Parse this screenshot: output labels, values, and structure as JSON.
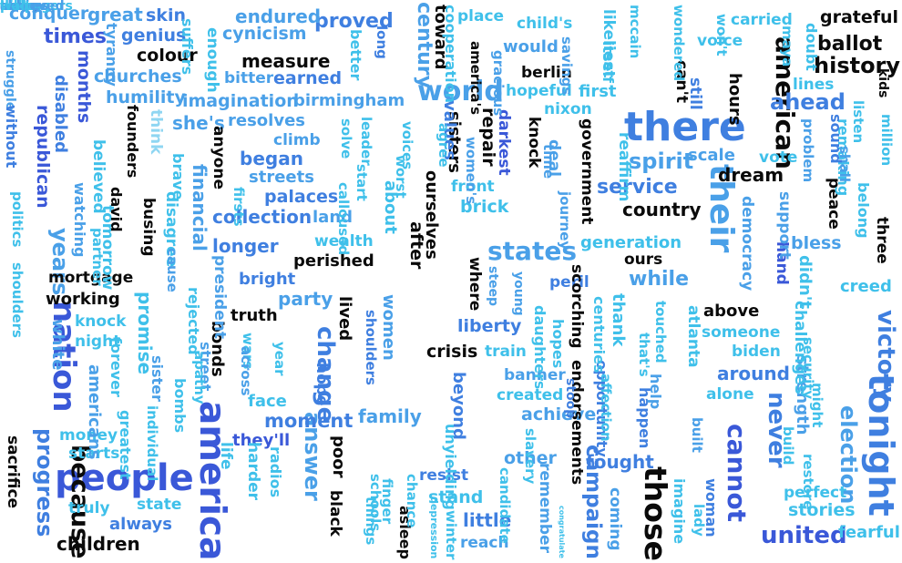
{
  "palette": {
    "black": "#0a0a0a",
    "royal": "#3a58d8",
    "blue": "#3f7fe0",
    "sky": "#4aa0e8",
    "cyan": "#3fc0ea",
    "pale": "#8fd6f2"
  },
  "words": [
    {
      "text": "america",
      "color": "royal"
    },
    {
      "text": "people",
      "color": "royal"
    },
    {
      "text": "tonight",
      "color": "blue"
    },
    {
      "text": "there",
      "color": "blue"
    },
    {
      "text": "their",
      "color": "sky"
    },
    {
      "text": "those",
      "color": "black"
    },
    {
      "text": "nation",
      "color": "royal"
    },
    {
      "text": "because",
      "color": "black"
    },
    {
      "text": "world",
      "color": "sky"
    },
    {
      "text": "american",
      "color": "black"
    },
    {
      "text": "history",
      "color": "black"
    },
    {
      "text": "campaign",
      "color": "blue"
    },
    {
      "text": "cannot",
      "color": "royal"
    },
    {
      "text": "never",
      "color": "blue"
    },
    {
      "text": "united",
      "color": "royal"
    },
    {
      "text": "states",
      "color": "sky"
    },
    {
      "text": "change",
      "color": "blue"
    },
    {
      "text": "answer",
      "color": "sky"
    },
    {
      "text": "victory",
      "color": "blue"
    },
    {
      "text": "election",
      "color": "sky"
    },
    {
      "text": "years",
      "color": "sky"
    },
    {
      "text": "progress",
      "color": "blue"
    },
    {
      "text": "century",
      "color": "sky"
    },
    {
      "text": "spirit",
      "color": "sky"
    },
    {
      "text": "ahead",
      "color": "blue"
    },
    {
      "text": "service",
      "color": "blue"
    },
    {
      "text": "dream",
      "color": "black"
    },
    {
      "text": "country",
      "color": "black"
    },
    {
      "text": "grateful",
      "color": "black"
    },
    {
      "text": "ballot",
      "color": "black"
    },
    {
      "text": "proved",
      "color": "blue"
    },
    {
      "text": "endured",
      "color": "sky"
    },
    {
      "text": "times",
      "color": "royal"
    },
    {
      "text": "conquer",
      "color": "sky"
    },
    {
      "text": "great",
      "color": "sky"
    },
    {
      "text": "skin",
      "color": "blue"
    },
    {
      "text": "genius",
      "color": "blue"
    },
    {
      "text": "colour",
      "color": "black"
    },
    {
      "text": "cynicism",
      "color": "sky"
    },
    {
      "text": "measure",
      "color": "black"
    },
    {
      "text": "churches",
      "color": "sky"
    },
    {
      "text": "bitter",
      "color": "sky"
    },
    {
      "text": "earned",
      "color": "blue"
    },
    {
      "text": "humility",
      "color": "sky"
    },
    {
      "text": "imagination",
      "color": "sky"
    },
    {
      "text": "birmingham",
      "color": "sky"
    },
    {
      "text": "resolves",
      "color": "sky"
    },
    {
      "text": "she's",
      "color": "sky"
    },
    {
      "text": "climb",
      "color": "sky"
    },
    {
      "text": "began",
      "color": "blue"
    },
    {
      "text": "streets",
      "color": "sky"
    },
    {
      "text": "palaces",
      "color": "blue"
    },
    {
      "text": "collection",
      "color": "blue"
    },
    {
      "text": "land",
      "color": "sky"
    },
    {
      "text": "longer",
      "color": "blue"
    },
    {
      "text": "wealth",
      "color": "cyan"
    },
    {
      "text": "perished",
      "color": "black"
    },
    {
      "text": "bright",
      "color": "blue"
    },
    {
      "text": "party",
      "color": "sky"
    },
    {
      "text": "truth",
      "color": "black"
    },
    {
      "text": "mortgage",
      "color": "black"
    },
    {
      "text": "working",
      "color": "black"
    },
    {
      "text": "knock",
      "color": "cyan"
    },
    {
      "text": "night",
      "color": "cyan"
    },
    {
      "text": "moment",
      "color": "blue"
    },
    {
      "text": "family",
      "color": "sky"
    },
    {
      "text": "they'll",
      "color": "royal"
    },
    {
      "text": "face",
      "color": "cyan"
    },
    {
      "text": "money",
      "color": "cyan"
    },
    {
      "text": "starts",
      "color": "cyan"
    },
    {
      "text": "truly",
      "color": "cyan"
    },
    {
      "text": "always",
      "color": "blue"
    },
    {
      "text": "state",
      "color": "cyan"
    },
    {
      "text": "children",
      "color": "black"
    },
    {
      "text": "sacrifice",
      "color": "black"
    },
    {
      "text": "liberty",
      "color": "blue"
    },
    {
      "text": "crisis",
      "color": "black"
    },
    {
      "text": "train",
      "color": "cyan"
    },
    {
      "text": "banner",
      "color": "sky"
    },
    {
      "text": "created",
      "color": "cyan"
    },
    {
      "text": "achieve",
      "color": "sky"
    },
    {
      "text": "other",
      "color": "sky"
    },
    {
      "text": "fought",
      "color": "blue"
    },
    {
      "text": "resist",
      "color": "blue"
    },
    {
      "text": "stand",
      "color": "cyan"
    },
    {
      "text": "little",
      "color": "blue"
    },
    {
      "text": "reach",
      "color": "sky"
    },
    {
      "text": "brick",
      "color": "cyan"
    },
    {
      "text": "front",
      "color": "cyan"
    },
    {
      "text": "generation",
      "color": "cyan"
    },
    {
      "text": "ours",
      "color": "black"
    },
    {
      "text": "while",
      "color": "sky"
    },
    {
      "text": "peril",
      "color": "blue"
    },
    {
      "text": "above",
      "color": "black"
    },
    {
      "text": "someone",
      "color": "cyan"
    },
    {
      "text": "biden",
      "color": "cyan"
    },
    {
      "text": "around",
      "color": "blue"
    },
    {
      "text": "alone",
      "color": "cyan"
    },
    {
      "text": "strength",
      "color": "sky"
    },
    {
      "text": "perfect",
      "color": "cyan"
    },
    {
      "text": "stories",
      "color": "cyan"
    },
    {
      "text": "fearful",
      "color": "cyan"
    },
    {
      "text": "creed",
      "color": "cyan"
    },
    {
      "text": "bless",
      "color": "sky"
    },
    {
      "text": "vote",
      "color": "cyan"
    },
    {
      "text": "scale",
      "color": "sky"
    },
    {
      "text": "reaffirm",
      "color": "cyan"
    },
    {
      "text": "voice",
      "color": "cyan"
    },
    {
      "text": "carried",
      "color": "cyan"
    },
    {
      "text": "lines",
      "color": "cyan"
    },
    {
      "text": "first",
      "color": "cyan"
    },
    {
      "text": "hopeful",
      "color": "cyan"
    },
    {
      "text": "nixon",
      "color": "cyan"
    },
    {
      "text": "place",
      "color": "cyan"
    },
    {
      "text": "child's",
      "color": "cyan"
    },
    {
      "text": "would",
      "color": "sky"
    },
    {
      "text": "berlin",
      "color": "black"
    },
    {
      "text": "hours",
      "color": "black"
    },
    {
      "text": "can't",
      "color": "black"
    },
    {
      "text": "kids",
      "color": "black"
    },
    {
      "text": "toward",
      "color": "black"
    },
    {
      "text": "deal",
      "color": "sky"
    },
    {
      "text": "still",
      "color": "blue"
    },
    {
      "text": "sisters",
      "color": "black"
    },
    {
      "text": "darkest",
      "color": "royal"
    },
    {
      "text": "repair",
      "color": "black"
    },
    {
      "text": "knock",
      "color": "black"
    },
    {
      "text": "government",
      "color": "black"
    },
    {
      "text": "hand",
      "color": "royal"
    },
    {
      "text": "three",
      "color": "black"
    },
    {
      "text": "peace",
      "color": "black"
    },
    {
      "text": "busing",
      "color": "black"
    },
    {
      "text": "anyone",
      "color": "black"
    },
    {
      "text": "bonds",
      "color": "black"
    },
    {
      "text": "black",
      "color": "black"
    },
    {
      "text": "asleep",
      "color": "black"
    },
    {
      "text": "lived",
      "color": "black"
    },
    {
      "text": "ourselves",
      "color": "black"
    },
    {
      "text": "after",
      "color": "black"
    },
    {
      "text": "where",
      "color": "black"
    },
    {
      "text": "scorching",
      "color": "black"
    },
    {
      "text": "endorsements",
      "color": "black"
    },
    {
      "text": "poor",
      "color": "black"
    },
    {
      "text": "hope",
      "color": "blue"
    },
    {
      "text": "street",
      "color": "sky"
    },
    {
      "text": "promise",
      "color": "cyan"
    },
    {
      "text": "americans",
      "color": "sky"
    },
    {
      "text": "white",
      "color": "sky"
    },
    {
      "text": "republican",
      "color": "royal"
    },
    {
      "text": "months",
      "color": "royal"
    },
    {
      "text": "disabled",
      "color": "blue"
    },
    {
      "text": "financial",
      "color": "sky"
    },
    {
      "text": "democracy",
      "color": "sky"
    },
    {
      "text": "support",
      "color": "sky"
    },
    {
      "text": "didn't",
      "color": "cyan"
    },
    {
      "text": "challenges",
      "color": "cyan"
    },
    {
      "text": "atlanta",
      "color": "cyan"
    },
    {
      "text": "woman",
      "color": "blue"
    },
    {
      "text": "coming",
      "color": "sky"
    },
    {
      "text": "remember",
      "color": "sky"
    },
    {
      "text": "congratulate",
      "color": "cyan"
    },
    {
      "text": "imagine",
      "color": "cyan"
    },
    {
      "text": "happen",
      "color": "blue"
    },
    {
      "text": "values",
      "color": "blue"
    },
    {
      "text": "about",
      "color": "cyan"
    },
    {
      "text": "women",
      "color": "sky"
    },
    {
      "text": "beyond",
      "color": "blue"
    },
    {
      "text": "thank",
      "color": "cyan"
    },
    {
      "text": "opportunity",
      "color": "blue"
    },
    {
      "text": "remaking",
      "color": "cyan"
    },
    {
      "text": "struggle",
      "color": "sky"
    },
    {
      "text": "without",
      "color": "blue"
    },
    {
      "text": "watching",
      "color": "sky"
    },
    {
      "text": "tomorrow",
      "color": "cyan"
    },
    {
      "text": "politics",
      "color": "cyan"
    },
    {
      "text": "shoulders",
      "color": "cyan"
    },
    {
      "text": "believed",
      "color": "cyan"
    },
    {
      "text": "think",
      "color": "pale"
    },
    {
      "text": "disagree",
      "color": "cyan"
    },
    {
      "text": "founders",
      "color": "black"
    },
    {
      "text": "david",
      "color": "black"
    },
    {
      "text": "partner",
      "color": "cyan"
    },
    {
      "text": "rejected",
      "color": "cyan"
    },
    {
      "text": "apathy",
      "color": "cyan"
    },
    {
      "text": "sister",
      "color": "sky"
    },
    {
      "text": "bombs",
      "color": "cyan"
    },
    {
      "text": "forever",
      "color": "cyan"
    },
    {
      "text": "individual",
      "color": "cyan"
    },
    {
      "text": "life",
      "color": "cyan"
    },
    {
      "text": "harder",
      "color": "cyan"
    },
    {
      "text": "radios",
      "color": "cyan"
    },
    {
      "text": "year",
      "color": "cyan"
    },
    {
      "text": "wars",
      "color": "cyan"
    },
    {
      "text": "schools",
      "color": "cyan"
    },
    {
      "text": "things",
      "color": "cyan"
    },
    {
      "text": "finger",
      "color": "cyan"
    },
    {
      "text": "chance",
      "color": "cyan"
    },
    {
      "text": "unyielding",
      "color": "cyan"
    },
    {
      "text": "depression",
      "color": "cyan"
    },
    {
      "text": "winter",
      "color": "cyan"
    },
    {
      "text": "candidate",
      "color": "cyan"
    },
    {
      "text": "slavery",
      "color": "cyan"
    },
    {
      "text": "hopes",
      "color": "cyan"
    },
    {
      "text": "daughters",
      "color": "cyan"
    },
    {
      "text": "centuries",
      "color": "cyan"
    },
    {
      "text": "affection",
      "color": "cyan"
    },
    {
      "text": "help",
      "color": "sky"
    },
    {
      "text": "built",
      "color": "sky"
    },
    {
      "text": "lady",
      "color": "cyan"
    },
    {
      "text": "build",
      "color": "cyan"
    },
    {
      "text": "restore",
      "color": "cyan"
    },
    {
      "text": "security",
      "color": "cyan"
    },
    {
      "text": "touched",
      "color": "cyan"
    },
    {
      "text": "that's",
      "color": "cyan"
    },
    {
      "text": "across",
      "color": "sky"
    },
    {
      "text": "leader",
      "color": "cyan"
    },
    {
      "text": "calloused",
      "color": "cyan"
    },
    {
      "text": "solve",
      "color": "cyan"
    },
    {
      "text": "shoulders",
      "color": "blue"
    },
    {
      "text": "voices",
      "color": "cyan"
    },
    {
      "text": "start",
      "color": "cyan"
    },
    {
      "text": "worst",
      "color": "cyan"
    },
    {
      "text": "women's",
      "color": "sky"
    },
    {
      "text": "agree",
      "color": "cyan"
    },
    {
      "text": "cooperation",
      "color": "cyan"
    },
    {
      "text": "america's",
      "color": "black"
    },
    {
      "text": "gracious",
      "color": "sky"
    },
    {
      "text": "mccain",
      "color": "cyan"
    },
    {
      "text": "wondered",
      "color": "cyan"
    },
    {
      "text": "likeliest",
      "color": "cyan"
    },
    {
      "text": "itself",
      "color": "cyan"
    },
    {
      "text": "savings",
      "color": "sky"
    },
    {
      "text": "won't",
      "color": "cyan"
    },
    {
      "text": "maya",
      "color": "cyan"
    },
    {
      "text": "doubt",
      "color": "cyan"
    },
    {
      "text": "listen",
      "color": "cyan"
    },
    {
      "text": "million",
      "color": "cyan"
    },
    {
      "text": "tyranny",
      "color": "sky"
    },
    {
      "text": "suffers",
      "color": "cyan"
    },
    {
      "text": "enough",
      "color": "cyan"
    },
    {
      "text": "better",
      "color": "cyan"
    },
    {
      "text": "long",
      "color": "blue"
    },
    {
      "text": "might",
      "color": "cyan"
    },
    {
      "text": "belong",
      "color": "cyan"
    },
    {
      "text": "shall",
      "color": "sky"
    },
    {
      "text": "problem",
      "color": "sky"
    },
    {
      "text": "journey",
      "color": "sky"
    },
    {
      "text": "time",
      "color": "sky"
    },
    {
      "text": "steep",
      "color": "sky"
    },
    {
      "text": "young",
      "color": "sky"
    },
    {
      "text": "president",
      "color": "sky"
    },
    {
      "text": "brave",
      "color": "cyan"
    },
    {
      "text": "cause",
      "color": "sky"
    },
    {
      "text": "sound",
      "color": "blue"
    },
    {
      "text": "greatest",
      "color": "cyan"
    },
    {
      "text": "stoop",
      "color": "blue"
    },
    {
      "text": "firsts",
      "color": "cyan"
    },
    {
      "text": "done",
      "color": "cyan"
    },
    {
      "text": "every",
      "color": "blue"
    },
    {
      "text": "along",
      "color": "sky"
    },
    {
      "text": "call",
      "color": "cyan"
    },
    {
      "text": "purpose",
      "color": "cyan"
    },
    {
      "text": "halls",
      "color": "cyan"
    },
    {
      "text": "bills",
      "color": "cyan"
    },
    {
      "text": "teenagers",
      "color": "cyan"
    },
    {
      "text": "achieved",
      "color": "sky"
    },
    {
      "text": "shores",
      "color": "sky"
    },
    {
      "text": "wait",
      "color": "cyan"
    }
  ]
}
